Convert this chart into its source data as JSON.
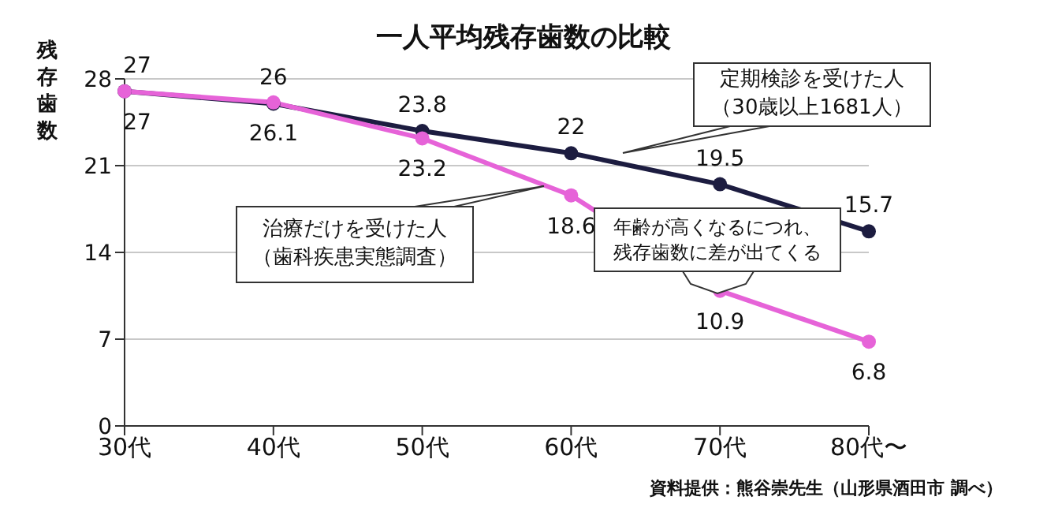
{
  "chart_data": {
    "type": "line",
    "title": "一人平均残存歯数の比較",
    "ylabel": "残存歯数",
    "categories": [
      "30代",
      "40代",
      "50代",
      "60代",
      "70代",
      "80代〜"
    ],
    "series": [
      {
        "name": "定期検診を受けた人（30歳以上1681人）",
        "color": "#1c1c40",
        "values": [
          27,
          26,
          23.8,
          22,
          19.5,
          15.7
        ]
      },
      {
        "name": "治療だけを受けた人（歯科疾患実態調査）",
        "color": "#e663d8",
        "values": [
          27,
          26.1,
          23.2,
          18.6,
          10.9,
          6.8
        ]
      }
    ],
    "ylim": [
      0,
      28
    ],
    "yticks": [
      0,
      7,
      14,
      21,
      28
    ],
    "grid": "y",
    "marker": "circle",
    "data_labels": true,
    "legend": false,
    "annotations": [
      "年齢が高くなるにつれ、残存歯数に差が出てくる",
      "資料提供：熊谷崇先生（山形県酒田市 調べ）"
    ]
  }
}
